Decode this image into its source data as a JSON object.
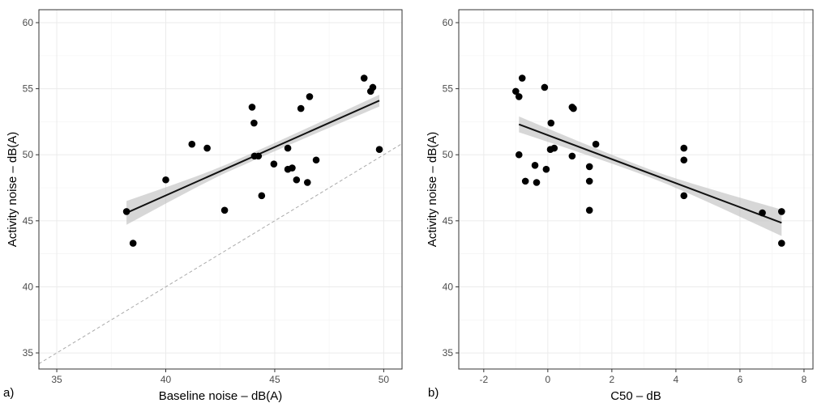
{
  "chart_data": [
    {
      "type": "scatter",
      "panel_label": "a)",
      "xlabel": "Baseline noise – dB(A)",
      "ylabel": "Activity noise – dB(A)",
      "xlim": [
        34.18,
        50.84
      ],
      "ylim": [
        33.78,
        60.98
      ],
      "xticks": [
        35,
        40,
        45,
        50
      ],
      "yticks": [
        35,
        40,
        45,
        50,
        55,
        60
      ],
      "grid": true,
      "points": [
        [
          38.2,
          45.7
        ],
        [
          38.5,
          43.3
        ],
        [
          40.0,
          48.1
        ],
        [
          41.2,
          50.8
        ],
        [
          41.9,
          50.5
        ],
        [
          42.7,
          45.8
        ],
        [
          43.96,
          53.6
        ],
        [
          44.05,
          52.4
        ],
        [
          44.07,
          49.9
        ],
        [
          44.25,
          49.9
        ],
        [
          44.4,
          46.9
        ],
        [
          44.96,
          49.3
        ],
        [
          45.6,
          50.5
        ],
        [
          45.6,
          48.9
        ],
        [
          45.8,
          49.0
        ],
        [
          46.0,
          48.1
        ],
        [
          46.2,
          53.5
        ],
        [
          46.5,
          47.9
        ],
        [
          46.6,
          54.4
        ],
        [
          46.9,
          49.6
        ],
        [
          49.1,
          55.8
        ],
        [
          49.4,
          54.8
        ],
        [
          49.5,
          55.1
        ],
        [
          49.8,
          50.4
        ]
      ],
      "fit_line": {
        "x": [
          38.2,
          49.8
        ],
        "y": [
          45.6,
          54.1
        ],
        "ci_halfwidth_ends": [
          0.9,
          0.45
        ],
        "ci_halfwidth_mid": 0.3
      },
      "reference_line": "y = x (dashed)"
    },
    {
      "type": "scatter",
      "panel_label": "b)",
      "xlabel": "C50 – dB",
      "ylabel": "Activity noise – dB(A)",
      "xlim": [
        -2.78,
        8.28
      ],
      "ylim": [
        33.78,
        60.98
      ],
      "xticks": [
        -2,
        0,
        2,
        4,
        6,
        8
      ],
      "yticks": [
        35,
        40,
        45,
        50,
        55,
        60
      ],
      "grid": true,
      "points": [
        [
          -1.0,
          54.8
        ],
        [
          -0.9,
          54.4
        ],
        [
          -0.8,
          55.8
        ],
        [
          -0.9,
          50.0
        ],
        [
          -0.7,
          48.0
        ],
        [
          -0.4,
          49.2
        ],
        [
          -0.35,
          47.9
        ],
        [
          -0.1,
          55.1
        ],
        [
          -0.05,
          48.9
        ],
        [
          0.1,
          52.4
        ],
        [
          0.08,
          50.4
        ],
        [
          0.2,
          50.5
        ],
        [
          0.76,
          53.6
        ],
        [
          0.8,
          53.5
        ],
        [
          0.76,
          49.9
        ],
        [
          1.3,
          49.1
        ],
        [
          1.3,
          48.0
        ],
        [
          1.3,
          45.8
        ],
        [
          1.5,
          50.8
        ],
        [
          4.25,
          50.5
        ],
        [
          4.25,
          49.6
        ],
        [
          4.25,
          46.9
        ],
        [
          6.7,
          45.6
        ],
        [
          7.3,
          45.7
        ],
        [
          7.3,
          43.3
        ]
      ],
      "fit_line": {
        "x": [
          -0.9,
          7.3
        ],
        "y": [
          52.3,
          44.85
        ],
        "ci_halfwidth_ends": [
          0.6,
          1.0
        ],
        "ci_halfwidth_mid": 0.3
      }
    }
  ]
}
